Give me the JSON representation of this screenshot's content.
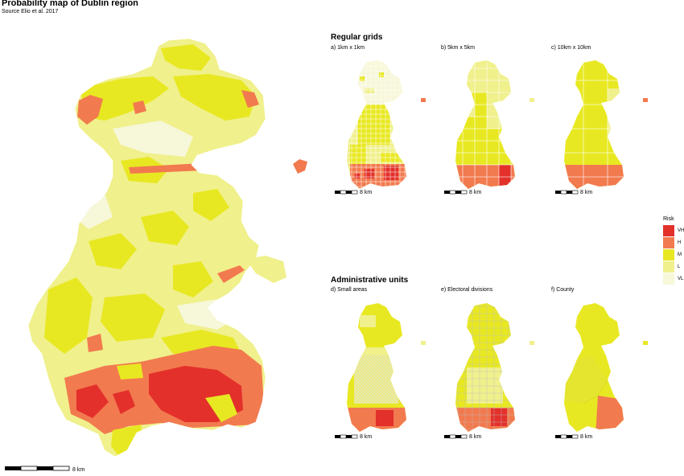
{
  "header": {
    "title": "Probability map of Dublin region",
    "subtitle": "Source Elio et al. 2017"
  },
  "sections": {
    "regular_grids": "Regular grids",
    "administrative_units": "Administrative units"
  },
  "panels": {
    "a": "a) 1km x 1km",
    "b": "b) 5km x 5km",
    "c": "c) 10km x 10km",
    "d": "d) Small areas",
    "e": "e) Electoral divisions",
    "f": "f) County"
  },
  "legend": {
    "title": "Risk",
    "classes": [
      {
        "code": "VH",
        "color": "#e3302b"
      },
      {
        "code": "H",
        "color": "#f27a4f"
      },
      {
        "code": "M",
        "color": "#e8e822"
      },
      {
        "code": "L",
        "color": "#f0f08c"
      },
      {
        "code": "VL",
        "color": "#f7f7d9"
      }
    ]
  },
  "scalebar": {
    "label": "8 km"
  }
}
